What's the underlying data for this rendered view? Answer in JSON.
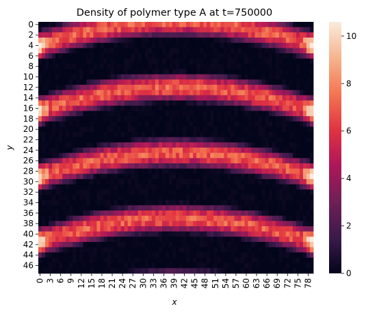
{
  "chart_data": {
    "type": "heatmap",
    "title": "Density of polymer type A at t=750000",
    "xlabel": "x",
    "ylabel": "y",
    "n_cols": 80,
    "n_rows": 48,
    "x_tick_labels": [
      "0",
      "3",
      "6",
      "9",
      "12",
      "15",
      "18",
      "21",
      "24",
      "27",
      "30",
      "33",
      "36",
      "39",
      "42",
      "45",
      "48",
      "51",
      "54",
      "57",
      "60",
      "63",
      "66",
      "69",
      "72",
      "75",
      "78"
    ],
    "y_tick_labels": [
      "0",
      "2",
      "4",
      "6",
      "8",
      "10",
      "12",
      "14",
      "16",
      "18",
      "20",
      "22",
      "24",
      "26",
      "28",
      "30",
      "32",
      "34",
      "36",
      "38",
      "40",
      "42",
      "44",
      "46"
    ],
    "colorbar": {
      "range": [
        0,
        10.6
      ],
      "tick_labels": [
        "0",
        "2",
        "4",
        "6",
        "8",
        "10"
      ],
      "colormap": "rocket",
      "colors": [
        "#03051a",
        "#3b1a4b",
        "#701f57",
        "#ad1759",
        "#e13342",
        "#f37651",
        "#f6b48f",
        "#faebdd"
      ]
    },
    "pattern": {
      "description_values": "banded arches; bright stripes centered near y≈3, 16, 29, 41 at the edges",
      "stripe_period_rows": 12.5,
      "stripe_phase_rows": 4,
      "arch_shift_rows": 4.5,
      "stripe_peak": 7.0,
      "edge_hotspot_peak": 10.5
    }
  }
}
